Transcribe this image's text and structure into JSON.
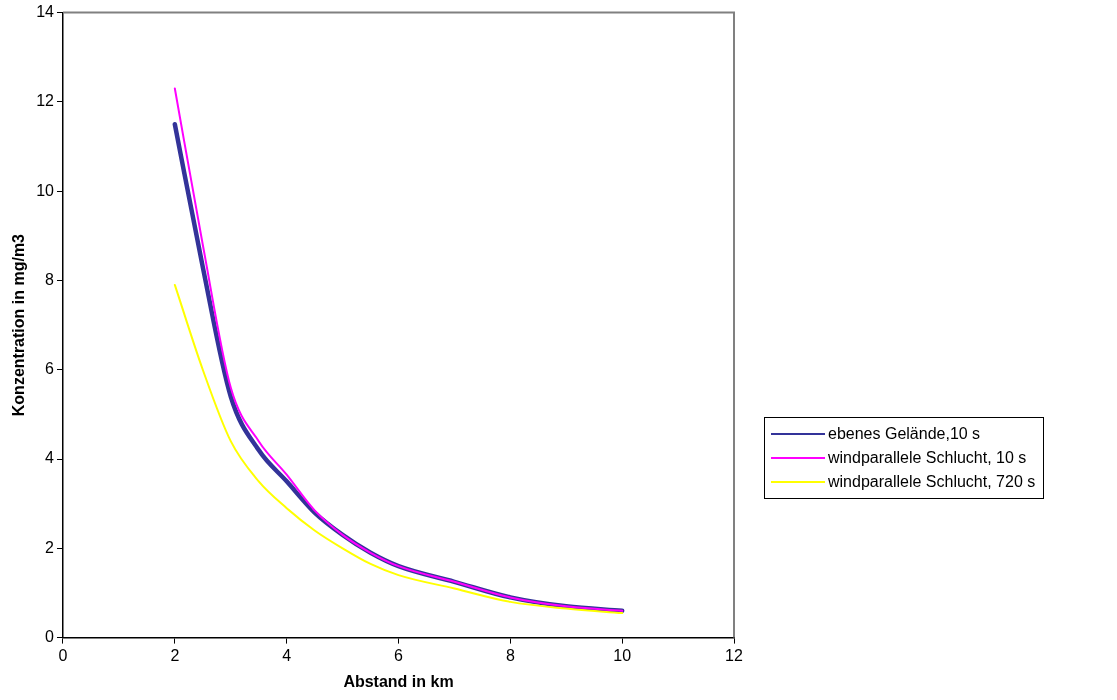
{
  "chart_data": {
    "type": "line",
    "xlabel": "Abstand in km",
    "ylabel": "Konzentration in mg/m3",
    "x": [
      2,
      2.5,
      3,
      3.5,
      4,
      4.5,
      5,
      5.5,
      6,
      7,
      8,
      9,
      10
    ],
    "series": [
      {
        "name": "ebenes Gelände,10 s",
        "color": "#333399",
        "values": [
          11.5,
          8.3,
          5.4,
          4.2,
          3.5,
          2.8,
          2.3,
          1.9,
          1.6,
          1.25,
          0.9,
          0.7,
          0.6
        ]
      },
      {
        "name": "windparallele Schlucht, 10 s",
        "color": "#ff00ff",
        "values": [
          12.3,
          8.8,
          5.6,
          4.4,
          3.65,
          2.85,
          2.3,
          1.9,
          1.6,
          1.25,
          0.9,
          0.7,
          0.6
        ]
      },
      {
        "name": "windparallele Schlucht, 720 s",
        "color": "#ffff00",
        "values": [
          7.9,
          6.0,
          4.4,
          3.5,
          2.9,
          2.4,
          2.0,
          1.65,
          1.4,
          1.1,
          0.8,
          0.65,
          0.55
        ]
      }
    ],
    "xlim": [
      0,
      12
    ],
    "xticks": [
      0,
      2,
      4,
      6,
      8,
      10,
      12
    ],
    "ylim": [
      0,
      14
    ],
    "yticks": [
      0,
      2,
      4,
      6,
      8,
      10,
      12,
      14
    ],
    "grid": false,
    "legend": "right",
    "marker": "none",
    "line_style": "solid"
  }
}
